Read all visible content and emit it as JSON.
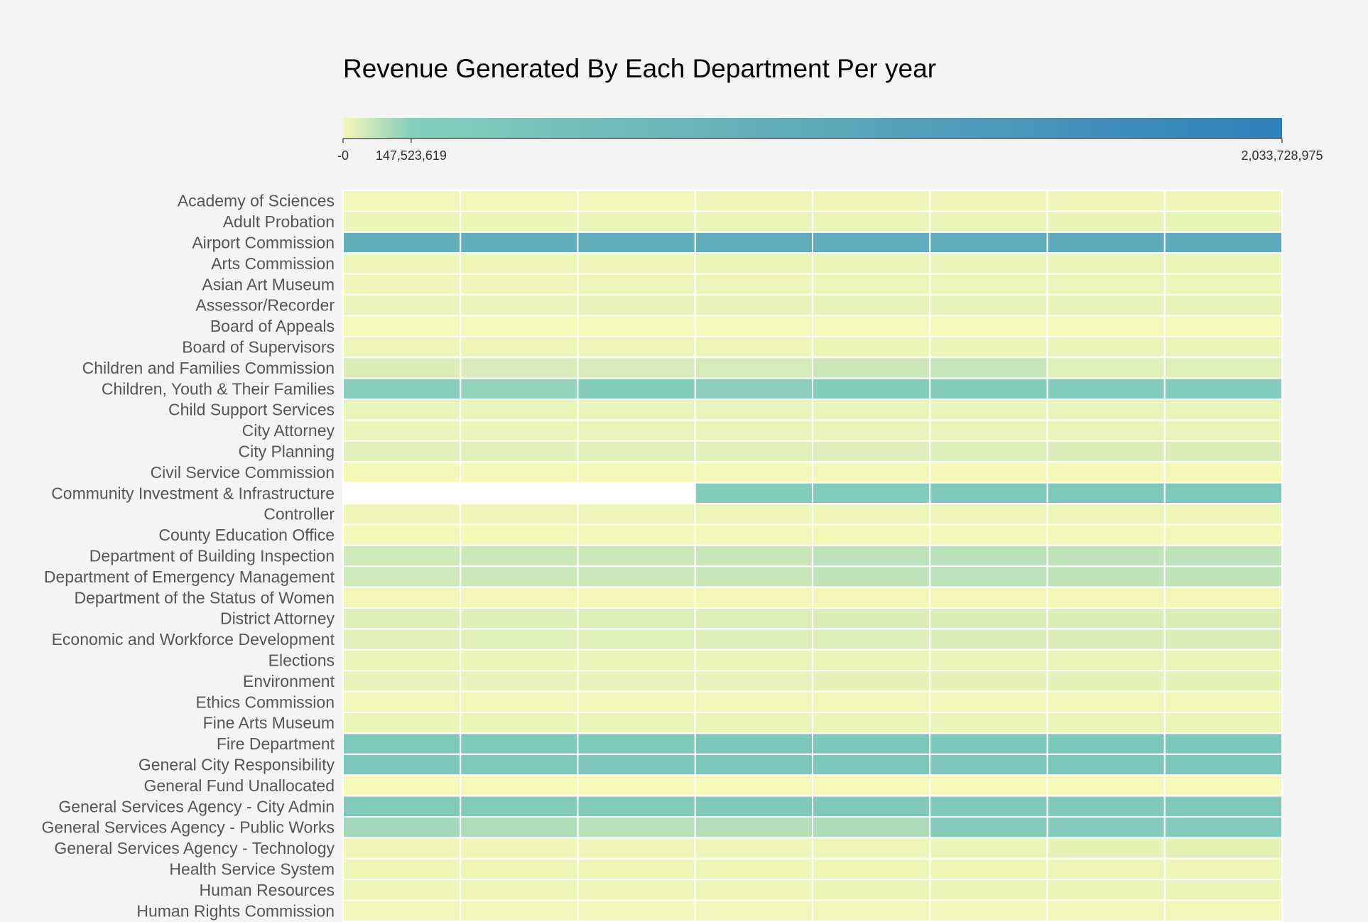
{
  "chart_data": {
    "type": "heatmap",
    "title": "Revenue Generated By Each Department Per year",
    "color_scale": {
      "domain": [
        0,
        147523619,
        2033728975
      ],
      "range": [
        "#f5f8b8",
        "#86cebb",
        "#2f7fba"
      ],
      "missing_color": "#ffffff",
      "tick_labels": [
        "-0",
        "147,523,619",
        "2,033,728,975"
      ],
      "ticks": [
        0,
        147523619,
        2033728975
      ]
    },
    "columns": 8,
    "rows": [
      "Academy of Sciences",
      "Adult Probation",
      "Airport Commission",
      "Arts Commission",
      "Asian Art Museum",
      "Assessor/Recorder",
      "Board of Appeals",
      "Board of Supervisors",
      "Children and Families Commission",
      "Children, Youth & Their Families",
      "Child Support Services",
      "City Attorney",
      "City Planning",
      "Civil Service Commission",
      "Community Investment & Infrastructure",
      "Controller",
      "County Education Office",
      "Department of Building Inspection",
      "Department of Emergency Management",
      "Department of the Status of Women",
      "District Attorney",
      "Economic and Workforce Development",
      "Elections",
      "Environment",
      "Ethics Commission",
      "Fine Arts Museum",
      "Fire Department",
      "General City Responsibility",
      "General Fund Unallocated",
      "General Services Agency - City Admin",
      "General Services Agency - Public Works",
      "General Services Agency - Technology",
      "Health Service System",
      "Human Resources",
      "Human Rights Commission"
    ],
    "values": [
      [
        5000000,
        5000000,
        5000000,
        6000000,
        6000000,
        7000000,
        7000000,
        8000000
      ],
      [
        12000000,
        12000000,
        13000000,
        13000000,
        14000000,
        15000000,
        16000000,
        18000000
      ],
      [
        920000000,
        900000000,
        930000000,
        960000000,
        980000000,
        1000000000,
        1020000000,
        1030000000
      ],
      [
        10000000,
        10000000,
        11000000,
        12000000,
        13000000,
        13000000,
        14000000,
        15000000
      ],
      [
        8000000,
        8000000,
        9000000,
        9000000,
        10000000,
        10000000,
        11000000,
        11000000
      ],
      [
        15000000,
        15000000,
        16000000,
        16000000,
        17000000,
        18000000,
        18000000,
        19000000
      ],
      [
        1000000,
        1000000,
        1000000,
        1000000,
        1000000,
        1000000,
        1000000,
        1000000
      ],
      [
        10000000,
        10000000,
        11000000,
        11000000,
        12000000,
        12000000,
        13000000,
        13000000
      ],
      [
        35000000,
        38000000,
        38000000,
        42000000,
        55000000,
        60000000,
        28000000,
        28000000
      ],
      [
        150000000,
        130000000,
        160000000,
        140000000,
        180000000,
        175000000,
        185000000,
        190000000
      ],
      [
        14000000,
        14000000,
        15000000,
        15000000,
        14000000,
        14000000,
        14000000,
        14000000
      ],
      [
        12000000,
        12000000,
        13000000,
        13000000,
        14000000,
        14000000,
        15000000,
        15000000
      ],
      [
        25000000,
        25000000,
        27000000,
        28000000,
        30000000,
        32000000,
        34000000,
        36000000
      ],
      [
        2000000,
        2000000,
        2000000,
        2000000,
        2000000,
        2000000,
        2000000,
        2000000
      ],
      [
        null,
        null,
        null,
        180000000,
        270000000,
        280000000,
        310000000,
        320000000
      ],
      [
        8000000,
        8000000,
        9000000,
        9000000,
        10000000,
        10000000,
        10000000,
        11000000
      ],
      [
        2000000,
        2000000,
        2000000,
        2000000,
        2000000,
        2000000,
        2000000,
        2000000
      ],
      [
        50000000,
        55000000,
        55000000,
        58000000,
        75000000,
        80000000,
        72000000,
        74000000
      ],
      [
        52000000,
        56000000,
        56000000,
        58000000,
        72000000,
        76000000,
        70000000,
        72000000
      ],
      [
        4000000,
        4000000,
        4000000,
        4000000,
        4000000,
        4000000,
        4000000,
        4000000
      ],
      [
        30000000,
        31000000,
        32000000,
        33000000,
        34000000,
        35000000,
        36000000,
        37000000
      ],
      [
        25000000,
        27000000,
        28000000,
        30000000,
        32000000,
        34000000,
        35000000,
        36000000
      ],
      [
        12000000,
        12000000,
        13000000,
        13000000,
        13000000,
        14000000,
        14000000,
        14000000
      ],
      [
        18000000,
        18000000,
        19000000,
        19000000,
        20000000,
        20000000,
        21000000,
        21000000
      ],
      [
        5000000,
        5000000,
        5000000,
        5000000,
        5000000,
        5000000,
        5000000,
        5000000
      ],
      [
        12000000,
        12000000,
        12000000,
        13000000,
        13000000,
        13000000,
        14000000,
        14000000
      ],
      [
        320000000,
        300000000,
        320000000,
        330000000,
        335000000,
        340000000,
        345000000,
        350000000
      ],
      [
        340000000,
        310000000,
        330000000,
        340000000,
        345000000,
        350000000,
        355000000,
        360000000
      ],
      [
        1000000,
        1000000,
        1000000,
        1000000,
        1000000,
        1000000,
        1000000,
        1000000
      ],
      [
        260000000,
        230000000,
        250000000,
        280000000,
        290000000,
        295000000,
        300000000,
        305000000
      ],
      [
        110000000,
        95000000,
        80000000,
        85000000,
        100000000,
        175000000,
        200000000,
        210000000
      ],
      [
        6000000,
        6000000,
        7000000,
        10000000,
        11000000,
        12000000,
        20000000,
        22000000
      ],
      [
        9000000,
        9000000,
        9000000,
        10000000,
        10000000,
        10000000,
        11000000,
        11000000
      ],
      [
        10000000,
        10000000,
        11000000,
        11000000,
        12000000,
        12000000,
        12000000,
        13000000
      ],
      [
        5000000,
        5000000,
        5000000,
        5000000,
        5000000,
        5000000,
        5000000,
        5000000
      ]
    ]
  }
}
